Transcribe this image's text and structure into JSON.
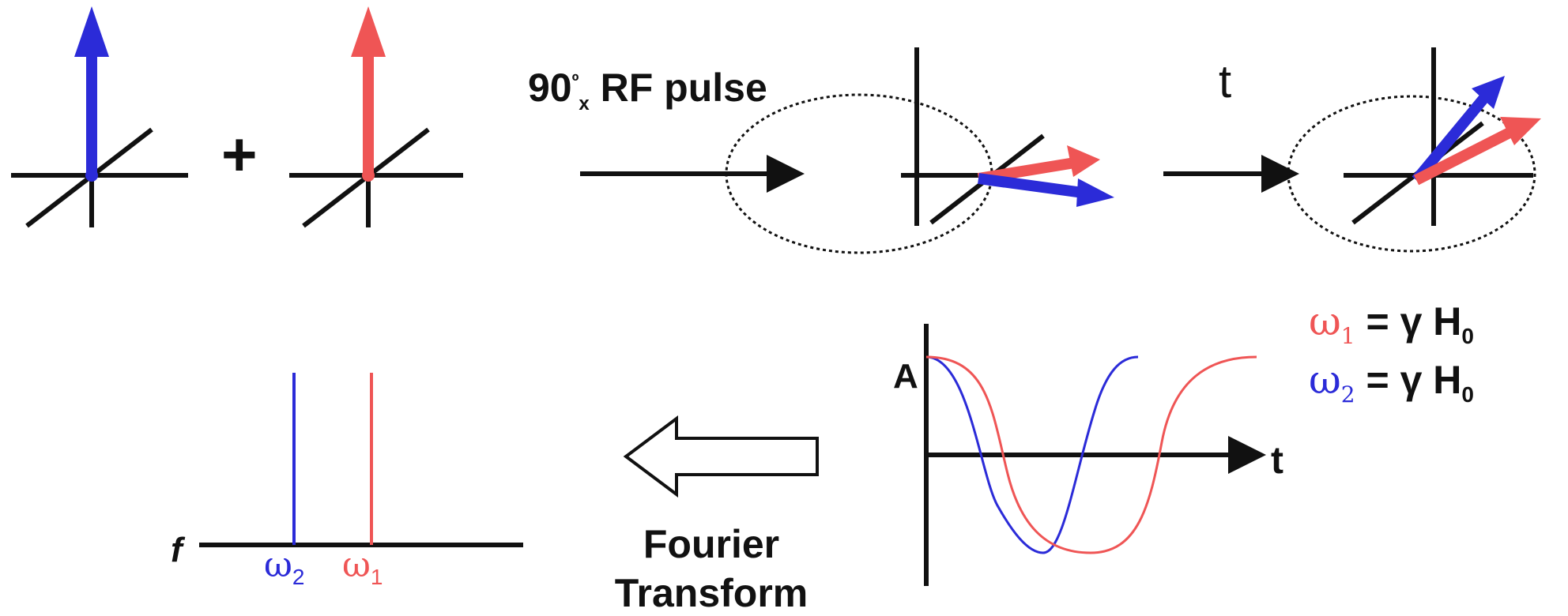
{
  "labels": {
    "pulse_main": "90",
    "pulse_sup": "º",
    "pulse_sub": "x",
    "pulse_rest": " RF pulse",
    "plus": "+",
    "time": "t",
    "amplitude": "A",
    "time_axis": "t",
    "freq_axis": "f",
    "omega": "ω",
    "sub1": "1",
    "sub2": "2",
    "fourier": "Fourier",
    "transform": "Transform"
  },
  "equations": {
    "eq1": {
      "lhs_sub": "1",
      "rhs": "=  γ H",
      "rhs_sub": "0"
    },
    "eq2": {
      "lhs_sub": "2",
      "rhs": "=  γ H",
      "rhs_sub": "0"
    }
  },
  "colors": {
    "blue": "#2b2bd8",
    "red": "#ef5555",
    "axis": "#111111"
  }
}
